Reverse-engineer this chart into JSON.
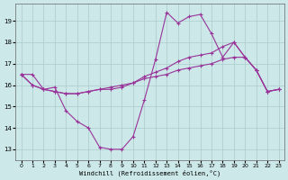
{
  "xlabel": "Windchill (Refroidissement éolien,°C)",
  "background_color": "#cce8e8",
  "line_color": "#993399",
  "grid_color": "#aacccc",
  "xlim": [
    -0.5,
    23.5
  ],
  "ylim": [
    12.5,
    19.8
  ],
  "yticks": [
    13,
    14,
    15,
    16,
    17,
    18,
    19
  ],
  "xticks": [
    0,
    1,
    2,
    3,
    4,
    5,
    6,
    7,
    8,
    9,
    10,
    11,
    12,
    13,
    14,
    15,
    16,
    17,
    18,
    19,
    20,
    21,
    22,
    23
  ],
  "hours": [
    0,
    1,
    2,
    3,
    4,
    5,
    6,
    7,
    8,
    9,
    10,
    11,
    12,
    13,
    14,
    15,
    16,
    17,
    18,
    19,
    20,
    21,
    22,
    23
  ],
  "line1": [
    16.5,
    16.5,
    15.8,
    15.9,
    14.8,
    14.3,
    14.0,
    13.1,
    13.0,
    13.0,
    13.6,
    15.3,
    17.2,
    19.4,
    18.9,
    19.2,
    19.3,
    18.4,
    17.3,
    18.0,
    17.3,
    16.7,
    15.7,
    15.8
  ],
  "line2": [
    16.5,
    16.0,
    15.8,
    15.7,
    15.6,
    15.6,
    15.7,
    15.8,
    15.8,
    15.9,
    16.1,
    16.4,
    16.6,
    16.8,
    17.1,
    17.3,
    17.4,
    17.5,
    17.8,
    18.0,
    17.3,
    16.7,
    15.7,
    15.8
  ],
  "line3": [
    16.5,
    16.0,
    15.8,
    15.7,
    15.6,
    15.6,
    15.7,
    15.8,
    15.9,
    16.0,
    16.1,
    16.3,
    16.4,
    16.5,
    16.7,
    16.8,
    16.9,
    17.0,
    17.2,
    17.3,
    17.3,
    16.7,
    15.7,
    15.8
  ]
}
